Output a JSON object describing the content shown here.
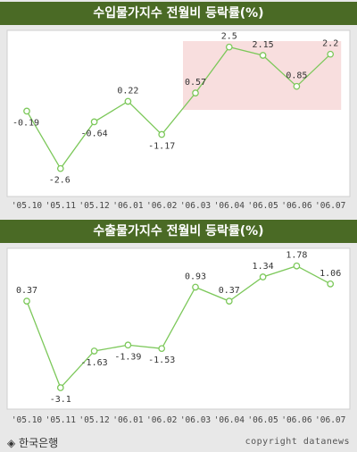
{
  "chart_data": [
    {
      "type": "line",
      "title": "수입물가지수 전월비 등락률(%)",
      "categories": [
        "'05.10",
        "'05.11",
        "'05.12",
        "'06.01",
        "'06.02",
        "'06.03",
        "'06.04",
        "'06.05",
        "'06.06",
        "'06.07"
      ],
      "values": [
        -0.19,
        -2.6,
        -0.64,
        0.22,
        -1.17,
        0.57,
        2.5,
        2.15,
        0.85,
        2.2
      ],
      "labels": [
        "-0.19",
        "-2.6",
        "-0.64",
        "0.22",
        "-1.17",
        "0.57",
        "2.5",
        "2.15",
        "0.85",
        "2.2"
      ],
      "ylim": [
        -3.1,
        2.9
      ],
      "highlight_range": [
        "'06.03",
        "'06.07"
      ],
      "grid": false,
      "line_color": "#7cc85a",
      "highlight_color": "#f8dede"
    },
    {
      "type": "line",
      "title": "수출물가지수 전월비 등락률(%)",
      "categories": [
        "'05.10",
        "'05.11",
        "'05.12",
        "'06.01",
        "'06.02",
        "'06.03",
        "'06.04",
        "'06.05",
        "'06.06",
        "'06.07"
      ],
      "values": [
        0.37,
        -3.1,
        -1.63,
        -1.39,
        -1.53,
        0.93,
        0.37,
        1.34,
        1.78,
        1.06
      ],
      "labels": [
        "0.37",
        "-3.1",
        "-1.63",
        "-1.39",
        "-1.53",
        "0.93",
        "0.37",
        "1.34",
        "1.78",
        "1.06"
      ],
      "ylim": [
        -3.6,
        2.2
      ],
      "grid": false,
      "line_color": "#7cc85a"
    }
  ],
  "footer": {
    "source": "◈ 한국은행",
    "copyright": "copyright datanews"
  }
}
